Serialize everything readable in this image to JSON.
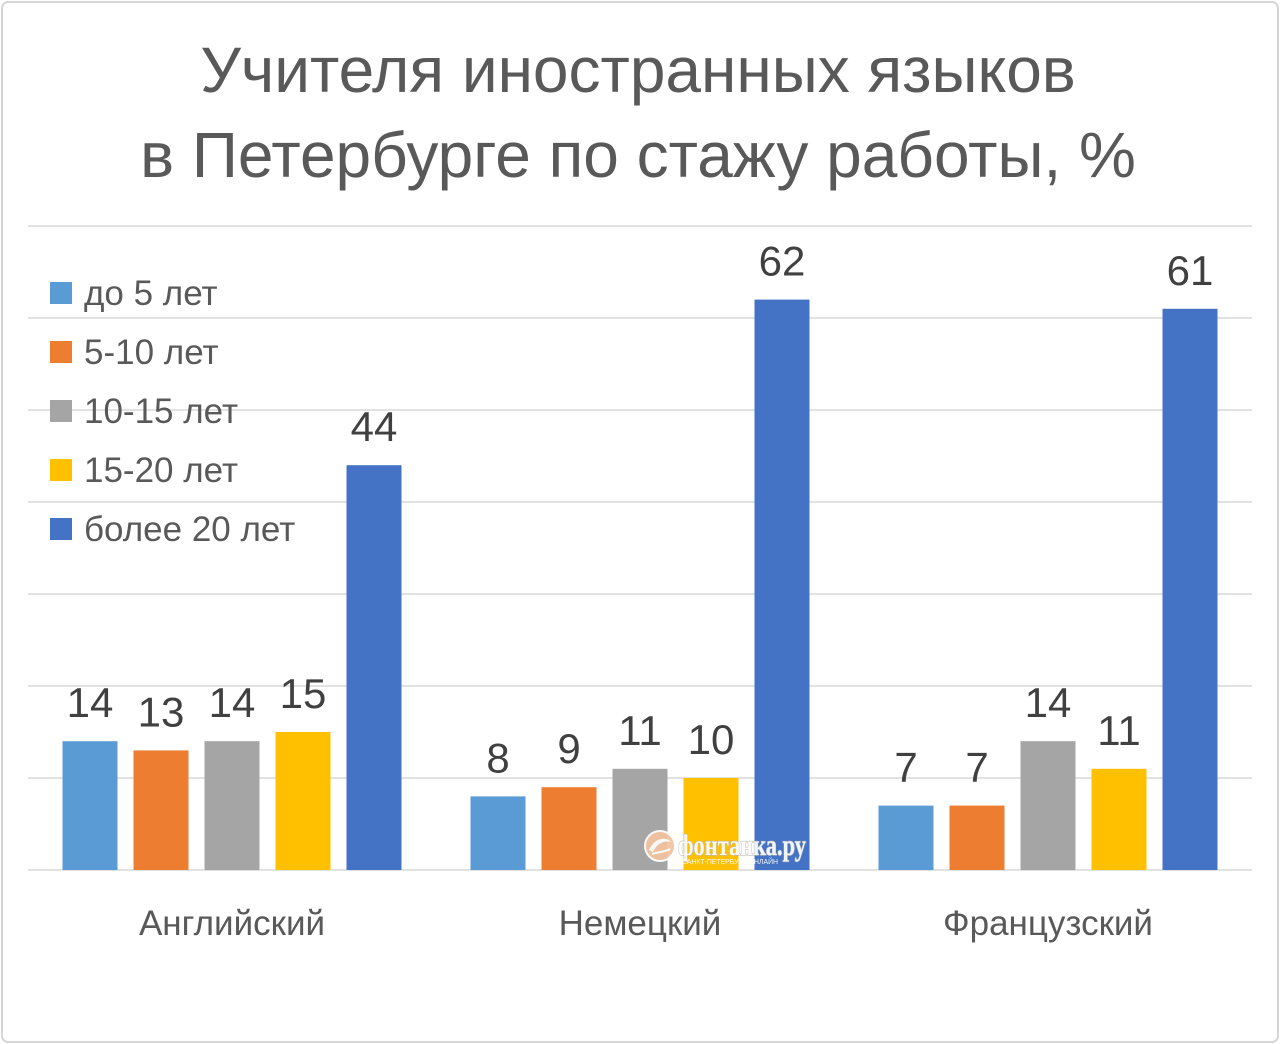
{
  "chart_data": {
    "type": "bar",
    "title": [
      "Учителя иностранных языков",
      "в Петербурге по стажу работы, %"
    ],
    "categories": [
      "Английский",
      "Немецкий",
      "Французский"
    ],
    "series": [
      {
        "name": "до 5 лет",
        "color": "#5B9BD5",
        "values": [
          14,
          8,
          7
        ]
      },
      {
        "name": "5-10 лет",
        "color": "#ED7D31",
        "values": [
          13,
          9,
          7
        ]
      },
      {
        "name": "10-15 лет",
        "color": "#A5A5A5",
        "values": [
          14,
          11,
          14
        ]
      },
      {
        "name": "15-20 лет",
        "color": "#FFC000",
        "values": [
          15,
          10,
          11
        ]
      },
      {
        "name": "более 20 лет",
        "color": "#4472C4",
        "values": [
          44,
          62,
          61
        ]
      }
    ],
    "ylim": [
      0,
      70
    ],
    "grid": true,
    "legend": "top-left"
  },
  "watermark": {
    "logo_text": "фонтанка.ру",
    "tagline": "САНКТ-ПЕТЕРБУРГ ОНЛАЙН",
    "icon": "fontanka-logo-icon"
  }
}
